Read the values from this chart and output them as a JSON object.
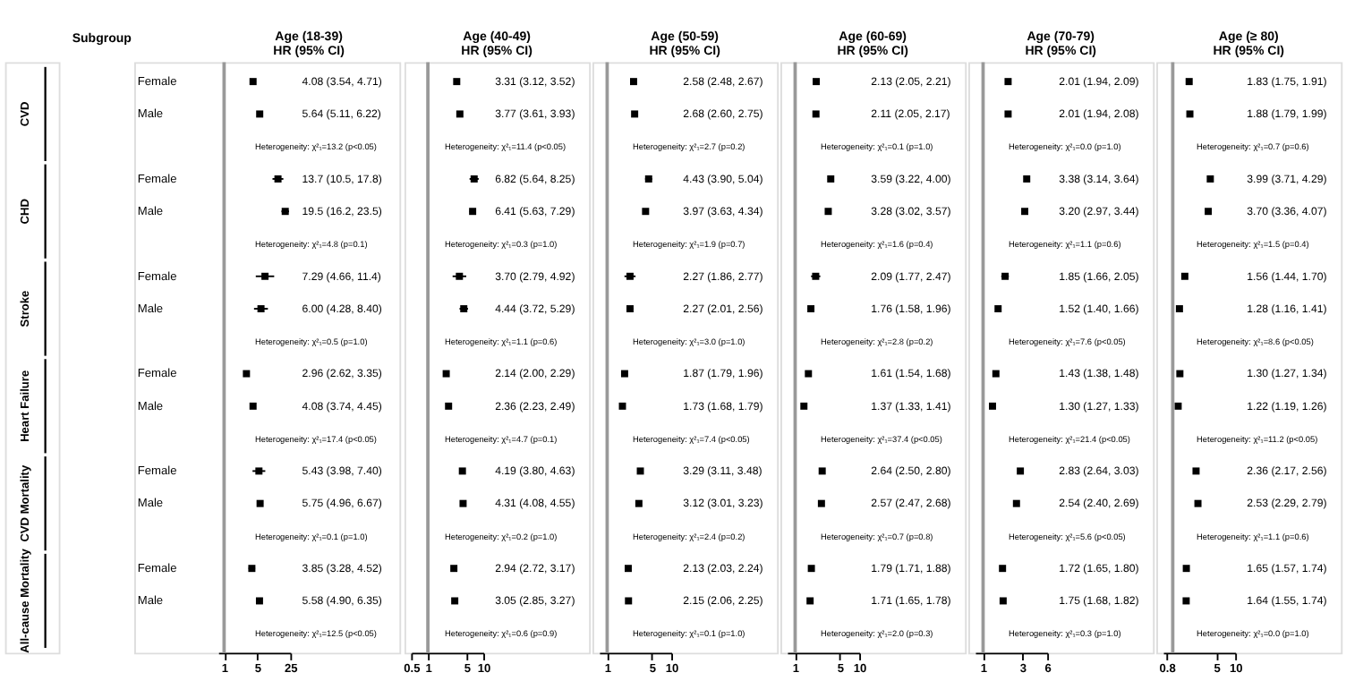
{
  "chart_data": [
    {
      "type": "other",
      "title": "Subgroup",
      "annotations": [
        "CVD",
        "CHD",
        "Stroke",
        "Heart Failure",
        "CVD Mortality",
        "All-cause Mortality"
      ]
    },
    {
      "type": "scatter",
      "orientation": "horizontal",
      "title": "Age (18-39)",
      "subtitle": "HR (95% CI)",
      "log": "x",
      "marker": "square",
      "categories": [
        "Female",
        "Male",
        null,
        "Female",
        "Male",
        null,
        "Female",
        "Male",
        null,
        "Female",
        "Male",
        null,
        "Female",
        "Male",
        null,
        "Female",
        "Male",
        null
      ],
      "series": [
        {
          "color": "#000000",
          "values": [
            4.08,
            5.64,
            null,
            13.7,
            19.5,
            null,
            7.29,
            6.0,
            null,
            2.96,
            4.08,
            null,
            5.43,
            5.75,
            null,
            3.85,
            5.58,
            null
          ],
          "errors": [
            [
              3.54,
              4.71
            ],
            [
              5.11,
              6.22
            ],
            null,
            [
              10.5,
              17.8
            ],
            [
              16.2,
              23.5
            ],
            null,
            [
              4.66,
              11.4
            ],
            [
              4.28,
              8.4
            ],
            null,
            [
              2.62,
              3.35
            ],
            [
              3.74,
              4.45
            ],
            null,
            [
              3.98,
              7.4
            ],
            [
              4.96,
              6.67
            ],
            null,
            [
              3.28,
              4.52
            ],
            [
              4.9,
              6.35
            ],
            null
          ],
          "value_labels": [
            "4.08 (3.54, 4.71)",
            "5.64 (5.11, 6.22)",
            null,
            "13.7 (10.5, 17.8)",
            "19.5 (16.2, 23.5)",
            null,
            "7.29 (4.66, 11.4)",
            "6.00 (4.28, 8.40)",
            null,
            "2.96 (2.62, 3.35)",
            "4.08 (3.74, 4.45)",
            null,
            "5.43 (3.98, 7.40)",
            "5.75 (4.96, 6.67)",
            null,
            "3.85 (3.28, 4.52)",
            "5.58 (4.90, 6.35)",
            null
          ]
        }
      ],
      "xlim": [
        0.75,
        25
      ],
      "xticks": [
        1,
        5,
        25
      ],
      "ref_lines": [
        {
          "axis": "x",
          "value": 1,
          "color": "#999999"
        }
      ],
      "annotations": [
        "Heterogeneity: χ²₁=13.2 (p<0.05)",
        "Heterogeneity: χ²₁=4.8 (p=0.1)",
        "Heterogeneity: χ²₁=0.5 (p=1.0)",
        "Heterogeneity: χ²₁=17.4 (p<0.05)",
        "Heterogeneity: χ²₁=0.1 (p=1.0)",
        "Heterogeneity: χ²₁=12.5 (p<0.05)"
      ]
    },
    {
      "type": "scatter",
      "orientation": "horizontal",
      "title": "Age (40-49)",
      "subtitle": "HR (95% CI)",
      "log": "x",
      "marker": "square",
      "tick_labels": "x",
      "categories": [
        null,
        null,
        null,
        null,
        null,
        null,
        null,
        null,
        null,
        null,
        null,
        null,
        null,
        null,
        null,
        null,
        null,
        null
      ],
      "series": [
        {
          "color": "#000000",
          "values": [
            3.31,
            3.77,
            null,
            6.82,
            6.41,
            null,
            3.7,
            4.44,
            null,
            2.14,
            2.36,
            null,
            4.19,
            4.31,
            null,
            2.94,
            3.05,
            null
          ],
          "errors": [
            [
              3.12,
              3.52
            ],
            [
              3.61,
              3.93
            ],
            null,
            [
              5.64,
              8.25
            ],
            [
              5.63,
              7.29
            ],
            null,
            [
              2.79,
              4.92
            ],
            [
              3.72,
              5.29
            ],
            null,
            [
              2.0,
              2.29
            ],
            [
              2.23,
              2.49
            ],
            null,
            [
              3.8,
              4.63
            ],
            [
              4.08,
              4.55
            ],
            null,
            [
              2.72,
              3.17
            ],
            [
              2.85,
              3.27
            ],
            null
          ],
          "value_labels": [
            "3.31 (3.12, 3.52)",
            "3.77 (3.61, 3.93)",
            null,
            "6.82 (5.64, 8.25)",
            "6.41 (5.63, 7.29)",
            null,
            "3.70 (2.79, 4.92)",
            "4.44 (3.72, 5.29)",
            null,
            "2.14 (2.00, 2.29)",
            "2.36 (2.23, 2.49)",
            null,
            "4.19 (3.80, 4.63)",
            "4.31 (4.08, 4.55)",
            null,
            "2.94 (2.72, 3.17)",
            "3.05 (2.85, 3.27)",
            null
          ]
        }
      ],
      "xlim": [
        0.5,
        10
      ],
      "xticks": [
        0.5,
        1,
        5,
        10
      ],
      "ref_lines": [
        {
          "axis": "x",
          "value": 1,
          "color": "#999999"
        }
      ],
      "annotations": [
        "Heterogeneity: χ²₁=11.4 (p<0.05)",
        "Heterogeneity: χ²₁=0.3 (p=1.0)",
        "Heterogeneity: χ²₁=1.1 (p=0.6)",
        "Heterogeneity: χ²₁=4.7 (p=0.1)",
        "Heterogeneity: χ²₁=0.2 (p=1.0)",
        "Heterogeneity: χ²₁=0.6 (p=0.9)"
      ]
    },
    {
      "type": "scatter",
      "orientation": "horizontal",
      "title": "Age (50-59)",
      "subtitle": "HR (95% CI)",
      "log": "x",
      "marker": "square",
      "tick_labels": "x",
      "categories": [
        null,
        null,
        null,
        null,
        null,
        null,
        null,
        null,
        null,
        null,
        null,
        null,
        null,
        null,
        null,
        null,
        null,
        null
      ],
      "series": [
        {
          "color": "#000000",
          "values": [
            2.58,
            2.68,
            null,
            4.43,
            3.97,
            null,
            2.27,
            2.27,
            null,
            1.87,
            1.73,
            null,
            3.29,
            3.12,
            null,
            2.13,
            2.15,
            null
          ],
          "errors": [
            [
              2.48,
              2.67
            ],
            [
              2.6,
              2.75
            ],
            null,
            [
              3.9,
              5.04
            ],
            [
              3.63,
              4.34
            ],
            null,
            [
              1.86,
              2.77
            ],
            [
              2.01,
              2.56
            ],
            null,
            [
              1.79,
              1.96
            ],
            [
              1.68,
              1.79
            ],
            null,
            [
              3.11,
              3.48
            ],
            [
              3.01,
              3.23
            ],
            null,
            [
              2.03,
              2.24
            ],
            [
              2.06,
              2.25
            ],
            null
          ],
          "value_labels": [
            "2.58 (2.48, 2.67)",
            "2.68 (2.60, 2.75)",
            null,
            "4.43 (3.90, 5.04)",
            "3.97 (3.63, 4.34)",
            null,
            "2.27 (1.86, 2.77)",
            "2.27 (2.01, 2.56)",
            null,
            "1.87 (1.79, 1.96)",
            "1.73 (1.68, 1.79)",
            null,
            "3.29 (3.11, 3.48)",
            "3.12 (3.01, 3.23)",
            null,
            "2.13 (2.03, 2.24)",
            "2.15 (2.06, 2.25)",
            null
          ]
        }
      ],
      "xlim": [
        0.75,
        10
      ],
      "xticks": [
        1,
        5,
        10
      ],
      "ref_lines": [
        {
          "axis": "x",
          "value": 1,
          "color": "#999999"
        }
      ],
      "annotations": [
        "Heterogeneity: χ²₁=2.7 (p=0.2)",
        "Heterogeneity: χ²₁=1.9 (p=0.7)",
        "Heterogeneity: χ²₁=3.0 (p=1.0)",
        "Heterogeneity: χ²₁=7.4 (p<0.05)",
        "Heterogeneity: χ²₁=2.4 (p=0.2)",
        "Heterogeneity: χ²₁=0.1 (p=1.0)"
      ]
    },
    {
      "type": "scatter",
      "orientation": "horizontal",
      "title": "Age (60-69)",
      "subtitle": "HR (95% CI)",
      "log": "x",
      "marker": "square",
      "tick_labels": "x",
      "categories": [
        null,
        null,
        null,
        null,
        null,
        null,
        null,
        null,
        null,
        null,
        null,
        null,
        null,
        null,
        null,
        null,
        null,
        null
      ],
      "series": [
        {
          "color": "#000000",
          "values": [
            2.13,
            2.11,
            null,
            3.59,
            3.28,
            null,
            2.09,
            1.76,
            null,
            1.61,
            1.37,
            null,
            2.64,
            2.57,
            null,
            1.79,
            1.71,
            null
          ],
          "errors": [
            [
              2.05,
              2.21
            ],
            [
              2.05,
              2.17
            ],
            null,
            [
              3.22,
              4.0
            ],
            [
              3.02,
              3.57
            ],
            null,
            [
              1.77,
              2.47
            ],
            [
              1.58,
              1.96
            ],
            null,
            [
              1.54,
              1.68
            ],
            [
              1.33,
              1.41
            ],
            null,
            [
              2.5,
              2.8
            ],
            [
              2.47,
              2.68
            ],
            null,
            [
              1.71,
              1.88
            ],
            [
              1.65,
              1.78
            ],
            null
          ],
          "value_labels": [
            "2.13 (2.05, 2.21)",
            "2.11 (2.05, 2.17)",
            null,
            "3.59 (3.22, 4.00)",
            "3.28 (3.02, 3.57)",
            null,
            "2.09 (1.77, 2.47)",
            "1.76 (1.58, 1.96)",
            null,
            "1.61 (1.54, 1.68)",
            "1.37 (1.33, 1.41)",
            null,
            "2.64 (2.50, 2.80)",
            "2.57 (2.47, 2.68)",
            null,
            "1.79 (1.71, 1.88)",
            "1.71 (1.65, 1.78)",
            null
          ]
        }
      ],
      "xlim": [
        0.75,
        10
      ],
      "xticks": [
        1,
        5,
        10
      ],
      "ref_lines": [
        {
          "axis": "x",
          "value": 1,
          "color": "#999999"
        }
      ],
      "annotations": [
        "Heterogeneity: χ²₁=0.1 (p=1.0)",
        "Heterogeneity: χ²₁=1.6 (p=0.4)",
        "Heterogeneity: χ²₁=2.8 (p=0.2)",
        "Heterogeneity: χ²₁=37.4 (p<0.05)",
        "Heterogeneity: χ²₁=0.7 (p=0.8)",
        "Heterogeneity: χ²₁=2.0 (p=0.3)"
      ]
    },
    {
      "type": "scatter",
      "orientation": "horizontal",
      "title": "Age (70-79)",
      "subtitle": "HR (95% CI)",
      "log": "x",
      "marker": "square",
      "tick_labels": "x",
      "categories": [
        null,
        null,
        null,
        null,
        null,
        null,
        null,
        null,
        null,
        null,
        null,
        null,
        null,
        null,
        null,
        null,
        null,
        null
      ],
      "series": [
        {
          "color": "#000000",
          "values": [
            2.01,
            2.01,
            null,
            3.38,
            3.2,
            null,
            1.85,
            1.52,
            null,
            1.43,
            1.3,
            null,
            2.83,
            2.54,
            null,
            1.72,
            1.75,
            null
          ],
          "errors": [
            [
              1.94,
              2.09
            ],
            [
              1.94,
              2.08
            ],
            null,
            [
              3.14,
              3.64
            ],
            [
              2.97,
              3.44
            ],
            null,
            [
              1.66,
              2.05
            ],
            [
              1.4,
              1.66
            ],
            null,
            [
              1.38,
              1.48
            ],
            [
              1.27,
              1.33
            ],
            null,
            [
              2.64,
              3.03
            ],
            [
              2.4,
              2.69
            ],
            null,
            [
              1.65,
              1.8
            ],
            [
              1.68,
              1.82
            ],
            null
          ],
          "value_labels": [
            "2.01 (1.94, 2.09)",
            "2.01 (1.94, 2.08)",
            null,
            "3.38 (3.14, 3.64)",
            "3.20 (2.97, 3.44)",
            null,
            "1.85 (1.66, 2.05)",
            "1.52 (1.40, 1.66)",
            null,
            "1.43 (1.38, 1.48)",
            "1.30 (1.27, 1.33)",
            null,
            "2.83 (2.64, 3.03)",
            "2.54 (2.40, 2.69)",
            null,
            "1.72 (1.65, 1.80)",
            "1.75 (1.68, 1.82)",
            null
          ]
        }
      ],
      "xlim": [
        0.8,
        6
      ],
      "xticks": [
        1,
        3,
        6
      ],
      "ref_lines": [
        {
          "axis": "x",
          "value": 1,
          "color": "#999999"
        }
      ],
      "annotations": [
        "Heterogeneity: χ²₁=0.0 (p=1.0)",
        "Heterogeneity: χ²₁=1.1 (p=0.6)",
        "Heterogeneity: χ²₁=7.6 (p<0.05)",
        "Heterogeneity: χ²₁=21.4 (p<0.05)",
        "Heterogeneity: χ²₁=5.6 (p<0.05)",
        "Heterogeneity: χ²₁=0.3 (p=1.0)"
      ]
    },
    {
      "type": "scatter",
      "orientation": "horizontal",
      "title": "Age (≥ 80)",
      "subtitle": "HR (95% CI)",
      "log": "x",
      "marker": "square",
      "tick_labels": "x",
      "categories": [
        null,
        null,
        null,
        null,
        null,
        null,
        null,
        null,
        null,
        null,
        null,
        null,
        null,
        null,
        null,
        null,
        null,
        null
      ],
      "series": [
        {
          "color": "#000000",
          "values": [
            1.83,
            1.88,
            null,
            3.99,
            3.7,
            null,
            1.56,
            1.28,
            null,
            1.3,
            1.22,
            null,
            2.36,
            2.53,
            null,
            1.65,
            1.64,
            null
          ],
          "errors": [
            [
              1.75,
              1.91
            ],
            [
              1.79,
              1.99
            ],
            null,
            [
              3.71,
              4.29
            ],
            [
              3.36,
              4.07
            ],
            null,
            [
              1.44,
              1.7
            ],
            [
              1.16,
              1.41
            ],
            null,
            [
              1.27,
              1.34
            ],
            [
              1.19,
              1.26
            ],
            null,
            [
              2.17,
              2.56
            ],
            [
              2.29,
              2.79
            ],
            null,
            [
              1.57,
              1.74
            ],
            [
              1.55,
              1.74
            ],
            null
          ],
          "value_labels": [
            "1.83 (1.75, 1.91)",
            "1.88 (1.79, 1.99)",
            null,
            "3.99 (3.71, 4.29)",
            "3.70 (3.36, 4.07)",
            null,
            "1.56 (1.44, 1.70)",
            "1.28 (1.16, 1.41)",
            null,
            "1.30 (1.27, 1.34)",
            "1.22 (1.19, 1.26)",
            null,
            "2.36 (2.17, 2.56)",
            "2.53 (2.29, 2.79)",
            null,
            "1.65 (1.57, 1.74)",
            "1.64 (1.55, 1.74)",
            null
          ]
        }
      ],
      "xlim": [
        0.7,
        10
      ],
      "xticks": [
        0.8,
        5,
        10
      ],
      "ref_lines": [
        {
          "axis": "x",
          "value": 1,
          "color": "#999999"
        }
      ],
      "annotations": [
        "Heterogeneity: χ²₁=0.7 (p=0.6)",
        "Heterogeneity: χ²₁=1.5 (p=0.4)",
        "Heterogeneity: χ²₁=8.6 (p<0.05)",
        "Heterogeneity: χ²₁=11.2 (p<0.05)",
        "Heterogeneity: χ²₁=1.1 (p=0.6)",
        "Heterogeneity: χ²₁=0.0 (p=1.0)"
      ]
    }
  ]
}
